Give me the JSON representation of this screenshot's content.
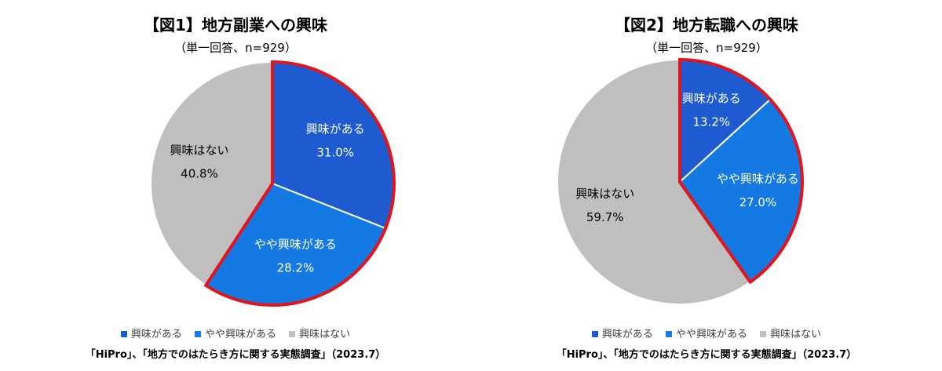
{
  "colors": {
    "interest": "#1F5BD0",
    "some_interest": "#1479E3",
    "no_interest": "#BFBFBF",
    "highlight": "#E3141B",
    "divider": "#FFFFFF"
  },
  "legend": [
    "興味がある",
    "やや興味がある",
    "興味はない"
  ],
  "source": "「HiPro」、「地方でのはたらき方に関する実態調査」（2023.7）",
  "chart_data": [
    {
      "type": "pie",
      "title": "【図1】地方副業への興味",
      "subtitle": "（単一回答、n=929）",
      "slices": [
        {
          "label": "興味がある",
          "value": 31.0,
          "display": "31.0%",
          "color_key": "interest"
        },
        {
          "label": "やや興味がある",
          "value": 28.2,
          "display": "28.2%",
          "color_key": "some_interest"
        },
        {
          "label": "興味はない",
          "value": 40.8,
          "display": "40.8%",
          "color_key": "no_interest"
        }
      ]
    },
    {
      "type": "pie",
      "title": "【図2】地方転職への興味",
      "subtitle": "（単一回答、n=929）",
      "slices": [
        {
          "label": "興味がある",
          "value": 13.2,
          "display": "13.2%",
          "color_key": "interest"
        },
        {
          "label": "やや興味がある",
          "value": 27.0,
          "display": "27.0%",
          "color_key": "some_interest"
        },
        {
          "label": "興味はない",
          "value": 59.7,
          "display": "59.7%",
          "color_key": "no_interest"
        }
      ]
    }
  ]
}
